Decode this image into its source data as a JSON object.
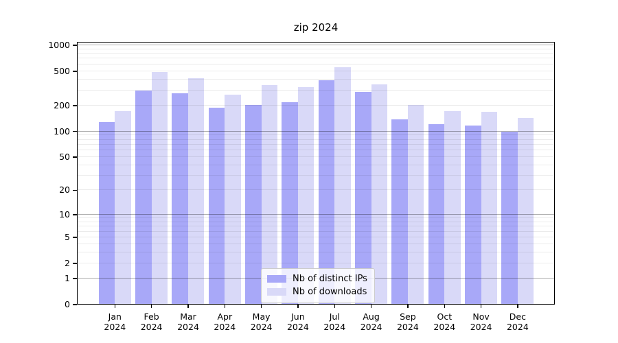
{
  "title": "zip 2024",
  "legend": {
    "items": [
      {
        "label": "Nb of distinct IPs",
        "color": "#a8a8f8"
      },
      {
        "label": "Nb of downloads",
        "color": "#d9d9f8"
      }
    ]
  },
  "chart_data": {
    "type": "bar",
    "title": "zip 2024",
    "x_months": [
      "Jan",
      "Feb",
      "Mar",
      "Apr",
      "May",
      "Jun",
      "Jul",
      "Aug",
      "Sep",
      "Oct",
      "Nov",
      "Dec"
    ],
    "year": "2024",
    "categories": [
      "Jan 2024",
      "Feb 2024",
      "Mar 2024",
      "Apr 2024",
      "May 2024",
      "Jun 2024",
      "Jul 2024",
      "Aug 2024",
      "Sep 2024",
      "Oct 2024",
      "Nov 2024",
      "Dec 2024"
    ],
    "series": [
      {
        "name": "Nb of distinct IPs",
        "color": "#a8a8f8",
        "values": [
          128,
          300,
          280,
          188,
          205,
          220,
          390,
          290,
          139,
          122,
          118,
          100
        ]
      },
      {
        "name": "Nb of downloads",
        "color": "#d9d9f8",
        "values": [
          172,
          486,
          418,
          266,
          346,
          330,
          557,
          355,
          203,
          172,
          170,
          142
        ]
      }
    ],
    "xlabel": "",
    "ylabel": "",
    "yscale": "log10(value+1)",
    "y_ticks": [
      0,
      1,
      2,
      5,
      10,
      20,
      50,
      100,
      200,
      500,
      1000
    ],
    "ylim": [
      0,
      1100
    ],
    "grid": "horizontal major+minor, drawn over bars",
    "legend_position": "bottom-center"
  }
}
